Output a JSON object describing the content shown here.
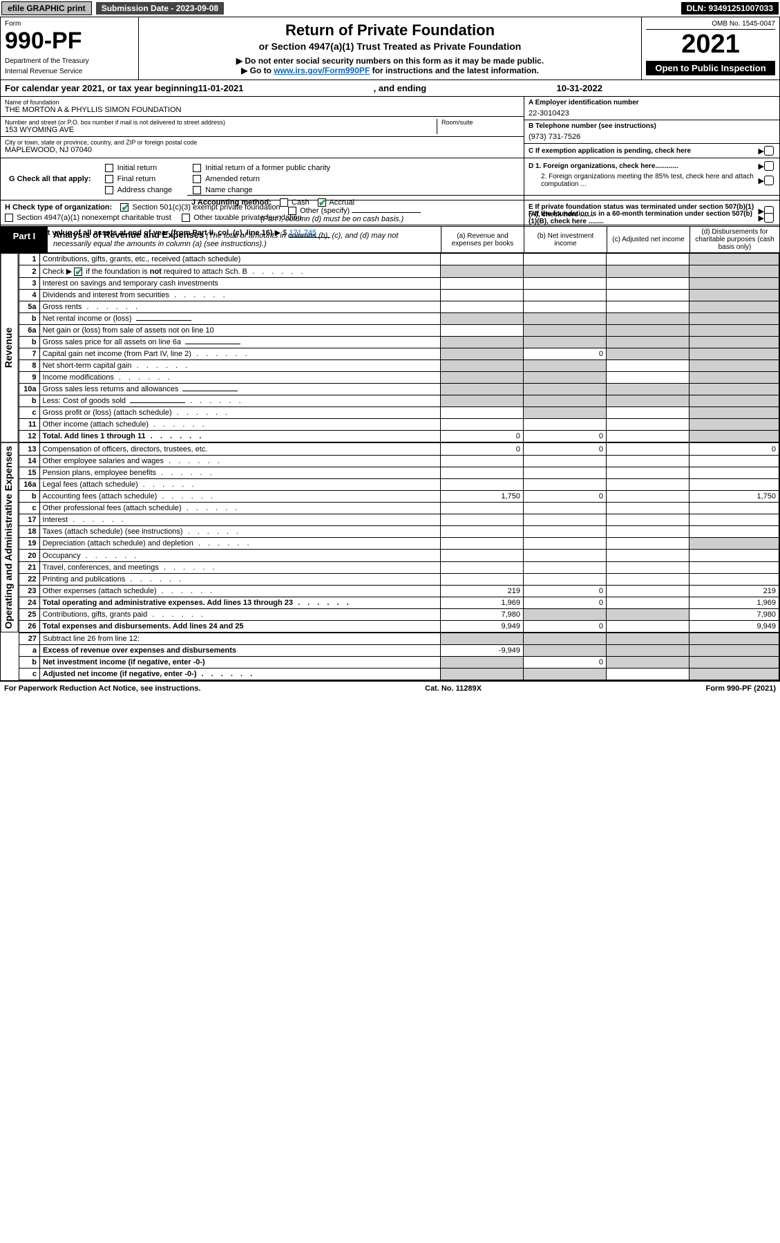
{
  "topbar": {
    "efile": "efile GRAPHIC print",
    "submission": "Submission Date - 2023-09-08",
    "dln": "DLN: 93491251007033"
  },
  "header": {
    "form_label": "Form",
    "form_num": "990-PF",
    "dept": "Department of the Treasury",
    "irs": "Internal Revenue Service",
    "title": "Return of Private Foundation",
    "subtitle": "or Section 4947(a)(1) Trust Treated as Private Foundation",
    "note1": "▶ Do not enter social security numbers on this form as it may be made public.",
    "note2_prefix": "▶ Go to ",
    "note2_link": "www.irs.gov/Form990PF",
    "note2_suffix": " for instructions and the latest information.",
    "omb": "OMB No. 1545-0047",
    "year": "2021",
    "open": "Open to Public Inspection"
  },
  "taxyear": {
    "prefix": "For calendar year 2021, or tax year beginning ",
    "begin": "11-01-2021",
    "mid": ", and ending ",
    "end": "10-31-2022"
  },
  "ident": {
    "name_lbl": "Name of foundation",
    "name_val": "THE MORTON A & PHYLLIS SIMON FOUNDATION",
    "addr_lbl": "Number and street (or P.O. box number if mail is not delivered to street address)",
    "addr_val": "153 WYOMING AVE",
    "room_lbl": "Room/suite",
    "city_lbl": "City or town, state or province, country, and ZIP or foreign postal code",
    "city_val": "MAPLEWOOD, NJ  07040",
    "a_lbl": "A Employer identification number",
    "a_val": "22-3010423",
    "b_lbl": "B Telephone number (see instructions)",
    "b_val": "(973) 731-7526",
    "c_lbl": "C If exemption application is pending, check here",
    "d1_lbl": "D 1. Foreign organizations, check here............",
    "d2_lbl": "2. Foreign organizations meeting the 85% test, check here and attach computation ...",
    "e_lbl": "E  If private foundation status was terminated under section 507(b)(1)(A), check here .......",
    "f_lbl": "F  If the foundation is in a 60-month termination under section 507(b)(1)(B), check here ........"
  },
  "checks": {
    "g_lbl": "G Check all that apply:",
    "g_opts": [
      "Initial return",
      "Final return",
      "Address change",
      "Initial return of a former public charity",
      "Amended return",
      "Name change"
    ],
    "h_lbl": "H Check type of organization:",
    "h_opt1": "Section 501(c)(3) exempt private foundation",
    "h_opt2": "Section 4947(a)(1) nonexempt charitable trust",
    "h_opt3": "Other taxable private foundation",
    "i_lbl": "I Fair market value of all assets at end of year (from Part II, col. (c), line 16)",
    "i_val": "171,745",
    "j_lbl": "J Accounting method:",
    "j_cash": "Cash",
    "j_accrual": "Accrual",
    "j_other": "Other (specify)",
    "j_note": "(Part I, column (d) must be on cash basis.)"
  },
  "part1": {
    "tag": "Part I",
    "title": "Analysis of Revenue and Expenses",
    "title_note": "(The total of amounts in columns (b), (c), and (d) may not necessarily equal the amounts in column (a) (see instructions).)",
    "col_a": "(a) Revenue and expenses per books",
    "col_b": "(b) Net investment income",
    "col_c": "(c) Adjusted net income",
    "col_d": "(d) Disbursements for charitable purposes (cash basis only)"
  },
  "sections": {
    "revenue": "Revenue",
    "expenses": "Operating and Administrative Expenses"
  },
  "rows": [
    {
      "n": "1",
      "d": "Contributions, gifts, grants, etc., received (attach schedule)",
      "a": "",
      "b": "",
      "c": "",
      "e": "",
      "shade_e": true
    },
    {
      "n": "2",
      "d_prefix": "Check ▶ ",
      "d_check": true,
      "d_suffix": " if the foundation is not required to attach Sch. B",
      "a": "",
      "b": "",
      "c": "",
      "e": "",
      "shade_a": true,
      "shade_b": true,
      "shade_c": true,
      "shade_e": true,
      "dots": true
    },
    {
      "n": "3",
      "d": "Interest on savings and temporary cash investments",
      "a": "",
      "b": "",
      "c": "",
      "e": "",
      "shade_e": true
    },
    {
      "n": "4",
      "d": "Dividends and interest from securities",
      "a": "",
      "b": "",
      "c": "",
      "e": "",
      "shade_e": true,
      "dots": true
    },
    {
      "n": "5a",
      "d": "Gross rents",
      "a": "",
      "b": "",
      "c": "",
      "e": "",
      "shade_e": true,
      "dots": true
    },
    {
      "n": "b",
      "d": "Net rental income or (loss)",
      "a": "",
      "b": "",
      "c": "",
      "e": "",
      "shade_a": true,
      "shade_b": true,
      "shade_c": true,
      "shade_e": true,
      "inline": true
    },
    {
      "n": "6a",
      "d": "Net gain or (loss) from sale of assets not on line 10",
      "a": "",
      "b": "",
      "c": "",
      "e": "",
      "shade_b": true,
      "shade_c": true,
      "shade_e": true
    },
    {
      "n": "b",
      "d": "Gross sales price for all assets on line 6a",
      "a": "",
      "b": "",
      "c": "",
      "e": "",
      "shade_a": true,
      "shade_b": true,
      "shade_c": true,
      "shade_e": true,
      "inline": true
    },
    {
      "n": "7",
      "d": "Capital gain net income (from Part IV, line 2)",
      "a": "",
      "b": "0",
      "c": "",
      "e": "",
      "shade_a": true,
      "shade_c": true,
      "shade_e": true,
      "dots": true
    },
    {
      "n": "8",
      "d": "Net short-term capital gain",
      "a": "",
      "b": "",
      "c": "",
      "e": "",
      "shade_a": true,
      "shade_b": true,
      "shade_e": true,
      "dots": true
    },
    {
      "n": "9",
      "d": "Income modifications",
      "a": "",
      "b": "",
      "c": "",
      "e": "",
      "shade_a": true,
      "shade_b": true,
      "shade_e": true,
      "dots": true
    },
    {
      "n": "10a",
      "d": "Gross sales less returns and allowances",
      "a": "",
      "b": "",
      "c": "",
      "e": "",
      "shade_a": true,
      "shade_b": true,
      "shade_c": true,
      "shade_e": true,
      "inline": true
    },
    {
      "n": "b",
      "d": "Less: Cost of goods sold",
      "a": "",
      "b": "",
      "c": "",
      "e": "",
      "shade_a": true,
      "shade_b": true,
      "shade_c": true,
      "shade_e": true,
      "inline": true,
      "dots": true
    },
    {
      "n": "c",
      "d": "Gross profit or (loss) (attach schedule)",
      "a": "",
      "b": "",
      "c": "",
      "e": "",
      "shade_b": true,
      "shade_e": true,
      "dots": true
    },
    {
      "n": "11",
      "d": "Other income (attach schedule)",
      "a": "",
      "b": "",
      "c": "",
      "e": "",
      "shade_e": true,
      "dots": true
    },
    {
      "n": "12",
      "d": "Total. Add lines 1 through 11",
      "a": "0",
      "b": "0",
      "c": "",
      "e": "",
      "shade_e": true,
      "bold": true,
      "dots": true
    }
  ],
  "exp_rows": [
    {
      "n": "13",
      "d": "Compensation of officers, directors, trustees, etc.",
      "a": "0",
      "b": "0",
      "c": "",
      "e": "0"
    },
    {
      "n": "14",
      "d": "Other employee salaries and wages",
      "a": "",
      "b": "",
      "c": "",
      "e": "",
      "dots": true
    },
    {
      "n": "15",
      "d": "Pension plans, employee benefits",
      "a": "",
      "b": "",
      "c": "",
      "e": "",
      "dots": true
    },
    {
      "n": "16a",
      "d": "Legal fees (attach schedule)",
      "a": "",
      "b": "",
      "c": "",
      "e": "",
      "dots": true
    },
    {
      "n": "b",
      "d": "Accounting fees (attach schedule)",
      "a": "1,750",
      "b": "0",
      "c": "",
      "e": "1,750",
      "dots": true
    },
    {
      "n": "c",
      "d": "Other professional fees (attach schedule)",
      "a": "",
      "b": "",
      "c": "",
      "e": "",
      "dots": true
    },
    {
      "n": "17",
      "d": "Interest",
      "a": "",
      "b": "",
      "c": "",
      "e": "",
      "dots": true
    },
    {
      "n": "18",
      "d": "Taxes (attach schedule) (see instructions)",
      "a": "",
      "b": "",
      "c": "",
      "e": "",
      "dots": true
    },
    {
      "n": "19",
      "d": "Depreciation (attach schedule) and depletion",
      "a": "",
      "b": "",
      "c": "",
      "e": "",
      "shade_e": true,
      "dots": true
    },
    {
      "n": "20",
      "d": "Occupancy",
      "a": "",
      "b": "",
      "c": "",
      "e": "",
      "dots": true
    },
    {
      "n": "21",
      "d": "Travel, conferences, and meetings",
      "a": "",
      "b": "",
      "c": "",
      "e": "",
      "dots": true
    },
    {
      "n": "22",
      "d": "Printing and publications",
      "a": "",
      "b": "",
      "c": "",
      "e": "",
      "dots": true
    },
    {
      "n": "23",
      "d": "Other expenses (attach schedule)",
      "a": "219",
      "b": "0",
      "c": "",
      "e": "219",
      "dots": true
    },
    {
      "n": "24",
      "d": "Total operating and administrative expenses. Add lines 13 through 23",
      "a": "1,969",
      "b": "0",
      "c": "",
      "e": "1,969",
      "bold": true,
      "dots": true
    },
    {
      "n": "25",
      "d": "Contributions, gifts, grants paid",
      "a": "7,980",
      "b": "",
      "c": "",
      "e": "7,980",
      "shade_b": true,
      "shade_c": true,
      "dots": true
    },
    {
      "n": "26",
      "d": "Total expenses and disbursements. Add lines 24 and 25",
      "a": "9,949",
      "b": "0",
      "c": "",
      "e": "9,949",
      "bold": true
    }
  ],
  "final_rows": [
    {
      "n": "27",
      "d": "Subtract line 26 from line 12:",
      "a": "",
      "b": "",
      "c": "",
      "e": "",
      "shade_a": true,
      "shade_b": true,
      "shade_c": true,
      "shade_e": true
    },
    {
      "n": "a",
      "d": "Excess of revenue over expenses and disbursements",
      "a": "-9,949",
      "b": "",
      "c": "",
      "e": "",
      "shade_b": true,
      "shade_c": true,
      "shade_e": true,
      "bold": true
    },
    {
      "n": "b",
      "d": "Net investment income (if negative, enter -0-)",
      "a": "",
      "b": "0",
      "c": "",
      "e": "",
      "shade_a": true,
      "shade_c": true,
      "shade_e": true,
      "bold": true
    },
    {
      "n": "c",
      "d": "Adjusted net income (if negative, enter -0-)",
      "a": "",
      "b": "",
      "c": "",
      "e": "",
      "shade_a": true,
      "shade_b": true,
      "shade_e": true,
      "bold": true,
      "dots": true
    }
  ],
  "footer": {
    "left": "For Paperwork Reduction Act Notice, see instructions.",
    "mid": "Cat. No. 11289X",
    "right": "Form 990-PF (2021)"
  }
}
